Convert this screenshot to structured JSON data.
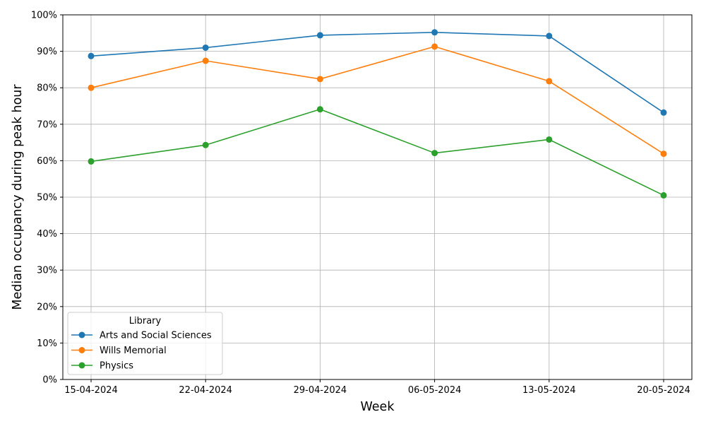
{
  "chart_data": {
    "type": "line",
    "x": [
      "15-04-2024",
      "22-04-2024",
      "29-04-2024",
      "06-05-2024",
      "13-05-2024",
      "20-05-2024"
    ],
    "xlabel": "Week",
    "ylabel": "Median occupancy during peak hour",
    "ylim": [
      0,
      100
    ],
    "y_unit": "%",
    "y_ticks": [
      "0%",
      "10%",
      "20%",
      "30%",
      "40%",
      "50%",
      "60%",
      "70%",
      "80%",
      "90%",
      "100%"
    ],
    "grid": true,
    "marker": "circle",
    "legend": {
      "title": "Library",
      "placement": "lower-left"
    },
    "series": [
      {
        "name": "Arts and Social Sciences",
        "color": "#1f77b4",
        "values": [
          88.7,
          91.0,
          94.4,
          95.2,
          94.2,
          73.2
        ]
      },
      {
        "name": "Wills Memorial",
        "color": "#ff7f0e",
        "values": [
          80.0,
          87.4,
          82.4,
          91.3,
          81.8,
          61.9
        ]
      },
      {
        "name": "Physics",
        "color": "#2ca02c",
        "values": [
          59.8,
          64.3,
          74.1,
          62.1,
          65.8,
          50.5
        ]
      }
    ]
  }
}
